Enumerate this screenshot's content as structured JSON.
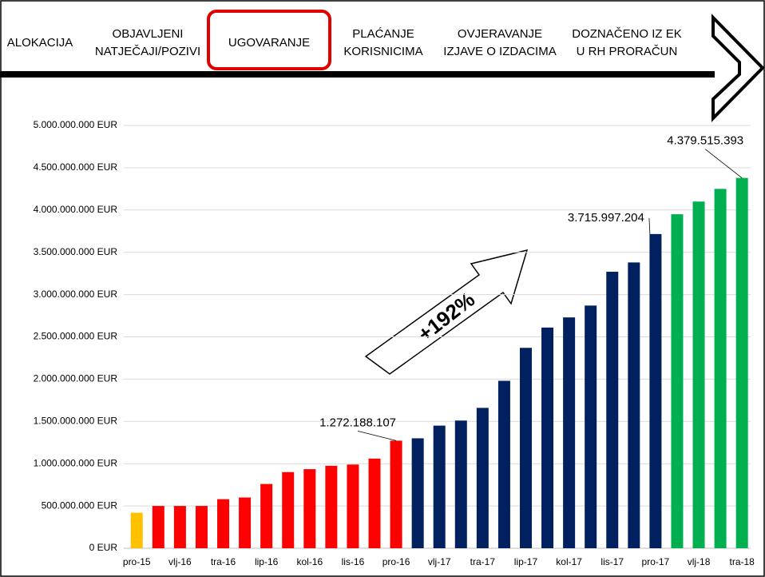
{
  "header": {
    "steps": [
      [
        "ALOKACIJA"
      ],
      [
        "OBJAVLJENI",
        "NATJEČAJI/POZIVI"
      ],
      [
        "UGOVARANJE"
      ],
      [
        "PLAĆANJE",
        "KORISNICIMA"
      ],
      [
        "OVJERAVANJE",
        "IZJAVE O IZDACIMA"
      ],
      [
        "DOZNAČENO IZ EK",
        "U RH PRORAČUN"
      ]
    ],
    "highlighted": 2
  },
  "chart_data": {
    "type": "bar",
    "annotation": "+192%",
    "categories": [
      "pro-15",
      null,
      "vlj-16",
      null,
      "tra-16",
      null,
      "lip-16",
      null,
      "kol-16",
      null,
      "lis-16",
      null,
      "pro-16",
      null,
      "vlj-17",
      null,
      "tra-17",
      null,
      "lip-17",
      null,
      "kol-17",
      null,
      "lis-17",
      null,
      "pro-17",
      null,
      "vlj-18",
      null,
      "tra-18"
    ],
    "values": [
      420000000,
      500000000,
      500000000,
      500000000,
      580000000,
      600000000,
      760000000,
      900000000,
      935000000,
      975000000,
      990000000,
      1060000000,
      1272188107,
      1300000000,
      1450000000,
      1510000000,
      1660000000,
      1980000000,
      2370000000,
      2610000000,
      2730000000,
      2870000000,
      3270000000,
      3380000000,
      3715997204,
      3950000000,
      4100000000,
      4250000000,
      4379515393
    ],
    "value_labels": [
      null,
      null,
      null,
      null,
      null,
      null,
      null,
      null,
      null,
      null,
      null,
      null,
      "1.272.188.107",
      null,
      null,
      null,
      null,
      null,
      null,
      null,
      null,
      null,
      null,
      null,
      "3.715.997.204",
      null,
      null,
      null,
      "4.379.515.393"
    ],
    "colors": [
      "#ffc000",
      "#ff0000",
      "#ff0000",
      "#ff0000",
      "#ff0000",
      "#ff0000",
      "#ff0000",
      "#ff0000",
      "#ff0000",
      "#ff0000",
      "#ff0000",
      "#ff0000",
      "#ff0000",
      "#002060",
      "#002060",
      "#002060",
      "#002060",
      "#002060",
      "#002060",
      "#002060",
      "#002060",
      "#002060",
      "#002060",
      "#002060",
      "#002060",
      "#00b050",
      "#00b050",
      "#00b050",
      "#00b050"
    ],
    "ylim": [
      0,
      5000000000
    ],
    "yticks": [
      {
        "value": 0,
        "label": "0 EUR"
      },
      {
        "value": 500000000,
        "label": "500.000.000 EUR"
      },
      {
        "value": 1000000000,
        "label": "1.000.000.000 EUR"
      },
      {
        "value": 1500000000,
        "label": "1.500.000.000 EUR"
      },
      {
        "value": 2000000000,
        "label": "2.000.000.000 EUR"
      },
      {
        "value": 2500000000,
        "label": "2.500.000.000 EUR"
      },
      {
        "value": 3000000000,
        "label": "3.000.000.000 EUR"
      },
      {
        "value": 3500000000,
        "label": "3.500.000.000 EUR"
      },
      {
        "value": 4000000000,
        "label": "4.000.000.000 EUR"
      },
      {
        "value": 4500000000,
        "label": "4.500.000.000 EUR"
      },
      {
        "value": 5000000000,
        "label": "5.000.000.000 EUR"
      }
    ],
    "grid": true
  }
}
